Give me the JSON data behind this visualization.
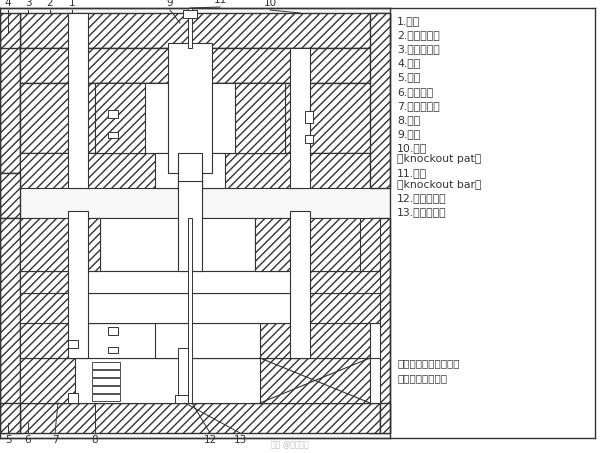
{
  "bg_color": "#ffffff",
  "line_color": "#333333",
  "labels_right": [
    "1.模架",
    "2.凸模均压板",
    "3.凸模上夹板",
    "4.凸模",
    "5.推板",
    "6.凹模夹板",
    "7.凹模均压板",
    "8.凹模",
    "9.冲头",
    "10.推板",
    "（knockout pat）",
    "11.推杆",
    "（knockout bar）",
    "12.推板用弹簧",
    "13.推板用螺栓"
  ],
  "note_line1": "注：均压板有时仅部分",
  "note_line2": "使用或完全不使用",
  "watermark": "初五 @模具设计"
}
